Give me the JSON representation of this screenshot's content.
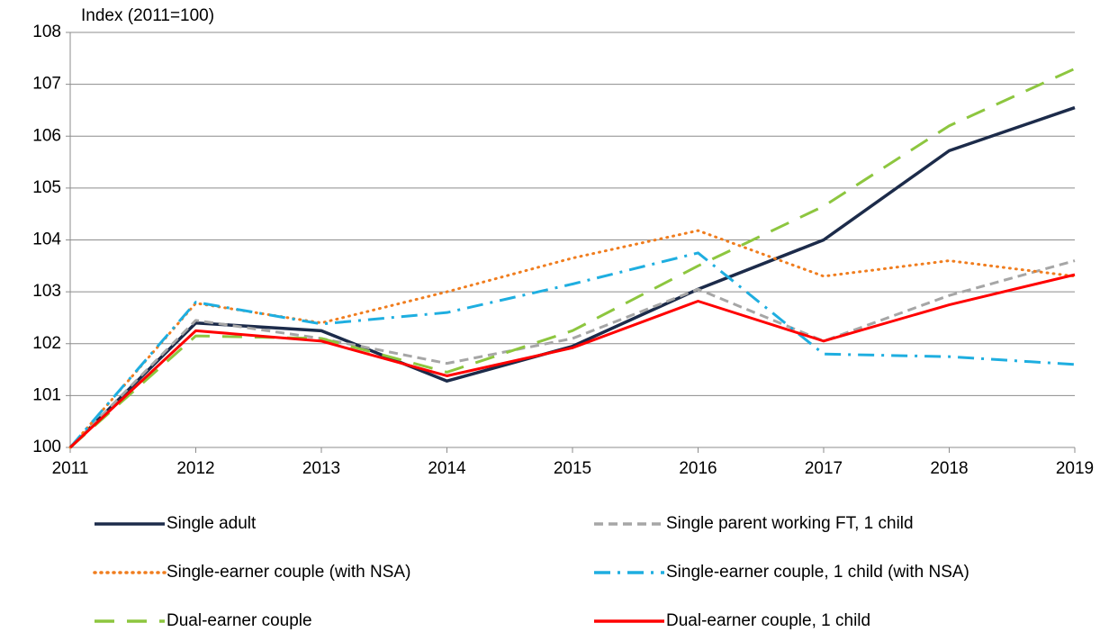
{
  "chart_data": {
    "type": "line",
    "y_axis_label": "Index (2011=100)",
    "x": [
      2011,
      2012,
      2013,
      2014,
      2015,
      2016,
      2017,
      2018,
      2019
    ],
    "xlim": [
      2011,
      2019
    ],
    "xticks": [
      2011,
      2012,
      2013,
      2014,
      2015,
      2016,
      2017,
      2018,
      2019
    ],
    "ylim": [
      100,
      108
    ],
    "yticks": [
      100,
      101,
      102,
      103,
      104,
      105,
      106,
      107,
      108
    ],
    "grid": true,
    "series": [
      {
        "name": "Single adult",
        "color": "#1c2b4a",
        "style": "solid",
        "values": [
          100,
          102.4,
          102.25,
          101.28,
          101.95,
          103.05,
          104.0,
          105.72,
          106.55
        ]
      },
      {
        "name": "Single parent working FT, 1 child",
        "color": "#a6a6a6",
        "style": "dashed",
        "values": [
          100,
          102.45,
          102.1,
          101.62,
          102.1,
          103.05,
          102.05,
          102.93,
          103.6
        ]
      },
      {
        "name": "Single-earner couple (with NSA)",
        "color": "#f07d1e",
        "style": "dotted",
        "values": [
          100,
          102.78,
          102.4,
          103.0,
          103.65,
          104.18,
          103.3,
          103.6,
          103.3
        ]
      },
      {
        "name": "Single-earner couple, 1 child (with NSA)",
        "color": "#1eaee0",
        "style": "dashdot",
        "values": [
          100,
          102.8,
          102.38,
          102.6,
          103.15,
          103.75,
          101.8,
          101.75,
          101.6
        ]
      },
      {
        "name": "Dual-earner couple",
        "color": "#8dc63f",
        "style": "longdash",
        "values": [
          100,
          102.15,
          102.1,
          101.45,
          102.25,
          103.5,
          104.65,
          106.2,
          107.3
        ]
      },
      {
        "name": "Dual-earner couple, 1 child",
        "color": "#ff0000",
        "style": "solid",
        "values": [
          100,
          102.25,
          102.05,
          101.38,
          101.92,
          102.82,
          102.05,
          102.75,
          103.33
        ]
      }
    ]
  }
}
